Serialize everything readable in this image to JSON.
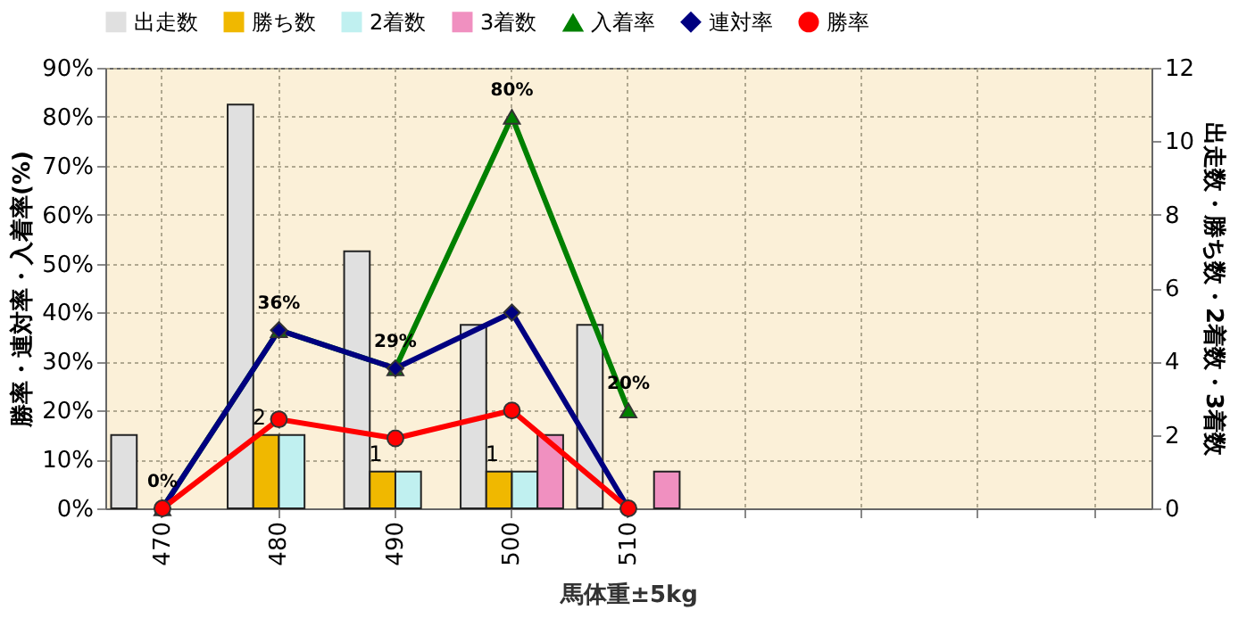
{
  "chart_data": {
    "type": "bar",
    "xlabel": "馬体重±5kg",
    "ylabel": "勝率・連対率・入着率(%)",
    "y2label": "出走数・勝ち数・2着数・3着数",
    "categories": [
      "470",
      "480",
      "490",
      "500",
      "510",
      null,
      null,
      null,
      null
    ],
    "series": [
      {
        "name": "出走数",
        "axis": "y2",
        "color": "#e0e0e0",
        "values": [
          2,
          11,
          7,
          5,
          5,
          null,
          null,
          null,
          null
        ]
      },
      {
        "name": "勝ち数",
        "axis": "y2",
        "color": "#f0b800",
        "values": [
          0,
          2,
          1,
          1,
          0,
          null,
          null,
          null,
          null
        ],
        "value_labels": [
          null,
          "2",
          "1",
          "1",
          null,
          null,
          null,
          null,
          null
        ]
      },
      {
        "name": "2着数",
        "axis": "y2",
        "color": "#c0f0f0",
        "values": [
          0,
          2,
          1,
          1,
          0,
          null,
          null,
          null,
          null
        ]
      },
      {
        "name": "3着数",
        "axis": "y2",
        "color": "#f090c0",
        "values": [
          0,
          0,
          0,
          2,
          1,
          null,
          null,
          null,
          null
        ]
      },
      {
        "name": "入着率",
        "type": "line",
        "color": "#008000",
        "marker": "triangle",
        "values": [
          0,
          36.4,
          28.6,
          80,
          20,
          null,
          null,
          null,
          null
        ],
        "value_labels": [
          "0%",
          "36%",
          "29%",
          "80%",
          "20%",
          null,
          null,
          null,
          null
        ]
      },
      {
        "name": "連対率",
        "type": "line",
        "color": "#000080",
        "marker": "diamond",
        "values": [
          0,
          36.4,
          28.6,
          40,
          0,
          null,
          null,
          null,
          null
        ]
      },
      {
        "name": "勝率",
        "type": "line",
        "color": "#ff0000",
        "marker": "circle",
        "values": [
          0,
          18.2,
          14.3,
          20,
          0,
          null,
          null,
          null,
          null
        ]
      }
    ],
    "ylim": [
      0,
      90
    ],
    "yticks": [
      {
        "value": 0,
        "label": "0%"
      },
      {
        "value": 10,
        "label": "10%"
      },
      {
        "value": 20,
        "label": "20%"
      },
      {
        "value": 30,
        "label": "30%"
      },
      {
        "value": 40,
        "label": "40%"
      },
      {
        "value": 50,
        "label": "50%"
      },
      {
        "value": 60,
        "label": "60%"
      },
      {
        "value": 70,
        "label": "70%"
      },
      {
        "value": 80,
        "label": "80%"
      },
      {
        "value": 90,
        "label": "90%"
      }
    ],
    "y2lim": [
      0,
      12
    ],
    "y2ticks": [
      0,
      2,
      4,
      6,
      8,
      10,
      12
    ],
    "grid": true,
    "legend": "top"
  }
}
